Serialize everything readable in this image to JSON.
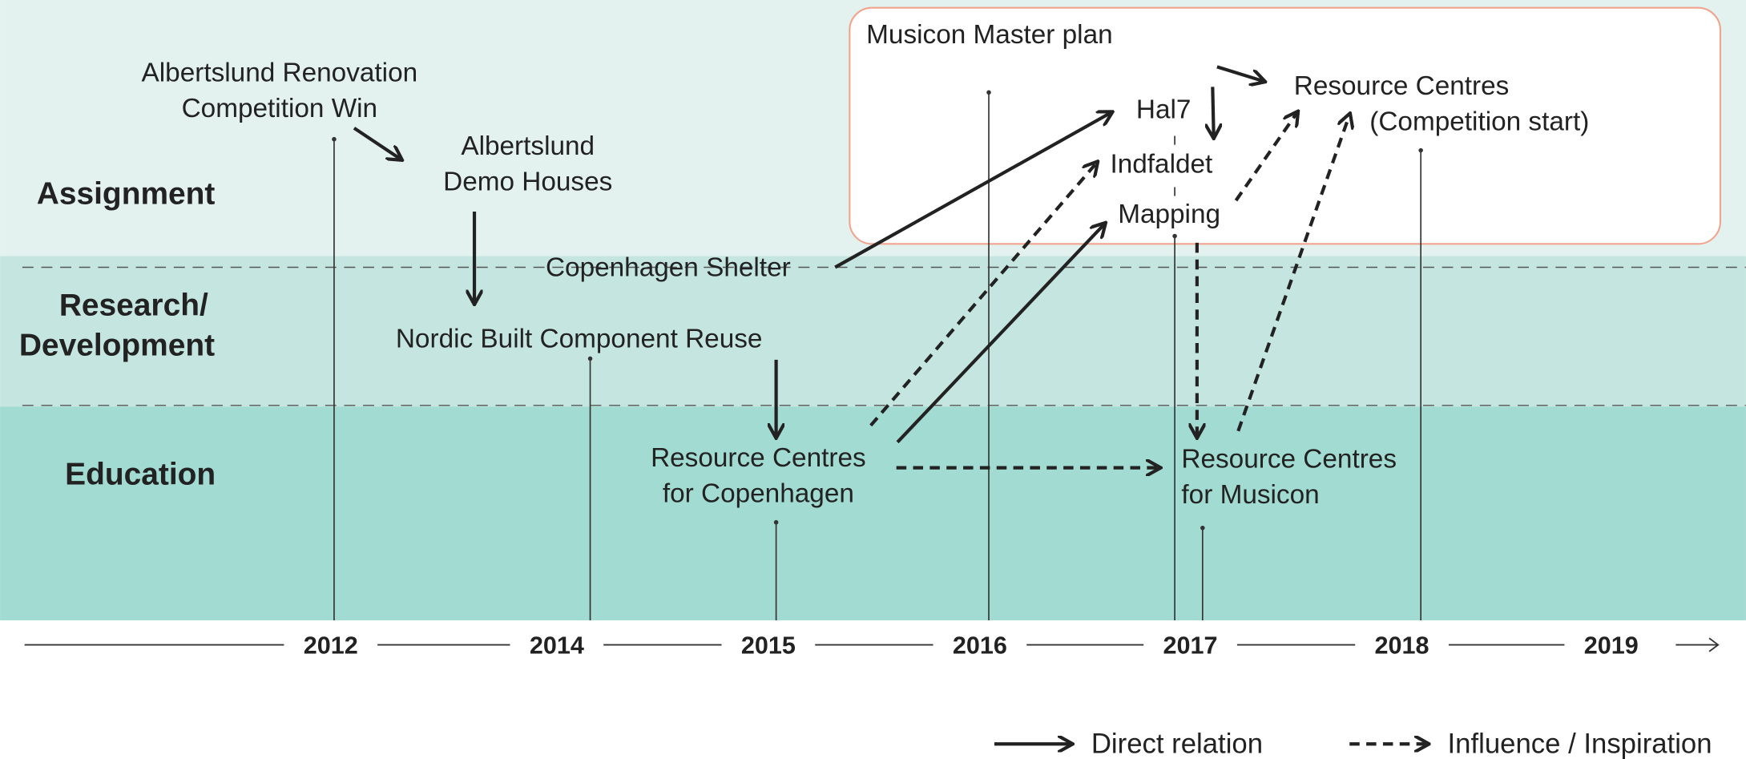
{
  "lanes": [
    [
      "Assignment"
    ],
    [
      "Research/",
      "Development"
    ],
    [
      "Education"
    ]
  ],
  "years": [
    "2012",
    "2014",
    "2015",
    "2016",
    "2017",
    "2018",
    "2019"
  ],
  "group": {
    "title": "Musicon Master plan"
  },
  "nodes": [
    {
      "lines": [
        "Albertslund Renovation",
        "Competition Win"
      ]
    },
    {
      "lines": [
        "Albertslund",
        "Demo Houses"
      ]
    },
    {
      "lines": [
        "Copenhagen Shelter"
      ]
    },
    {
      "lines": [
        "Nordic Built Component Reuse"
      ]
    },
    {
      "lines": [
        "Resource Centres",
        "for Copenhagen"
      ]
    },
    {
      "lines": [
        "Hal7"
      ]
    },
    {
      "lines": [
        "Indfaldet"
      ]
    },
    {
      "lines": [
        "Mapping"
      ]
    },
    {
      "lines": [
        "Resource Centres",
        "(Competition start)"
      ]
    },
    {
      "lines": [
        "Resource Centres",
        "for Musicon"
      ]
    }
  ],
  "legend": [
    "Direct relation",
    "Influence / Inspiration"
  ]
}
